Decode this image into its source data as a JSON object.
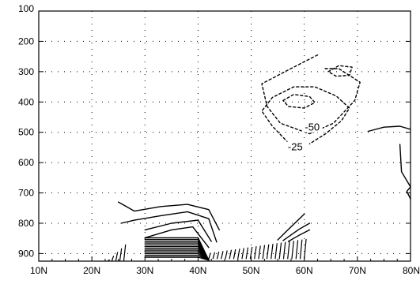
{
  "chart_data": {
    "type": "contour",
    "title": "",
    "xlabel": "",
    "ylabel": "",
    "xlim": [
      10,
      80
    ],
    "ylim": [
      100,
      925
    ],
    "y_inverted": true,
    "grid": true,
    "x_ticks": [
      {
        "value": 10,
        "label": "10N"
      },
      {
        "value": 20,
        "label": "20N"
      },
      {
        "value": 30,
        "label": "30N"
      },
      {
        "value": 40,
        "label": "40N"
      },
      {
        "value": 50,
        "label": "50N"
      },
      {
        "value": 60,
        "label": "60N"
      },
      {
        "value": 70,
        "label": "70N"
      },
      {
        "value": 80,
        "label": "80N"
      }
    ],
    "y_ticks": [
      {
        "value": 100,
        "label": "100"
      },
      {
        "value": 200,
        "label": "200"
      },
      {
        "value": 300,
        "label": "300"
      },
      {
        "value": 400,
        "label": "400"
      },
      {
        "value": 500,
        "label": "500"
      },
      {
        "value": 600,
        "label": "600"
      },
      {
        "value": 700,
        "label": "700"
      },
      {
        "value": 800,
        "label": "800"
      },
      {
        "value": 900,
        "label": "900"
      }
    ],
    "contour_labels": [
      {
        "text": "-50",
        "x": 61.5,
        "y": 492
      },
      {
        "text": "-25",
        "x": 58.3,
        "y": 557
      }
    ],
    "dashed_contours": [
      [
        [
          62.5,
          245
        ],
        [
          58,
          285
        ],
        [
          52,
          340
        ],
        [
          53,
          415
        ],
        [
          55.5,
          470
        ],
        [
          61,
          505
        ],
        [
          65.5,
          470
        ],
        [
          69.5,
          395
        ],
        [
          70.5,
          335
        ],
        [
          66.5,
          290
        ],
        [
          63.5,
          290
        ]
      ],
      [
        [
          57,
          535
        ],
        [
          54,
          480
        ],
        [
          52,
          430
        ],
        [
          54,
          385
        ],
        [
          58,
          350
        ],
        [
          62,
          350
        ],
        [
          66,
          380
        ],
        [
          68.5,
          420
        ],
        [
          67,
          462
        ],
        [
          64,
          505
        ],
        [
          61,
          538
        ]
      ],
      [
        [
          56,
          395
        ],
        [
          58,
          375
        ],
        [
          61,
          382
        ],
        [
          62,
          402
        ],
        [
          60,
          420
        ],
        [
          57,
          415
        ],
        [
          56,
          395
        ]
      ],
      [
        [
          64.5,
          300
        ],
        [
          66.5,
          280
        ],
        [
          69,
          285
        ],
        [
          68.5,
          312
        ],
        [
          66,
          315
        ],
        [
          64.5,
          300
        ]
      ]
    ],
    "solid_contours": [
      [
        [
          25,
          730
        ],
        [
          28,
          760
        ],
        [
          33,
          745
        ],
        [
          38,
          738
        ],
        [
          42,
          755
        ],
        [
          44,
          822
        ]
      ],
      [
        [
          25.5,
          800
        ],
        [
          28,
          790
        ],
        [
          33,
          775
        ],
        [
          38,
          762
        ],
        [
          42,
          785
        ],
        [
          43.5,
          862
        ]
      ],
      [
        [
          30,
          822
        ],
        [
          35,
          800
        ],
        [
          40,
          790
        ],
        [
          42.5,
          860
        ]
      ],
      [
        [
          30,
          848
        ],
        [
          35,
          822
        ],
        [
          39,
          812
        ],
        [
          42,
          880
        ]
      ],
      [
        [
          55,
          855
        ],
        [
          57,
          820
        ],
        [
          60,
          770
        ]
      ],
      [
        [
          56,
          857
        ],
        [
          59,
          820
        ],
        [
          61,
          800
        ]
      ],
      [
        [
          57,
          860
        ],
        [
          59,
          840
        ],
        [
          61,
          822
        ]
      ],
      [
        [
          72,
          497
        ],
        [
          75,
          483
        ],
        [
          78,
          480
        ],
        [
          80,
          490
        ]
      ],
      [
        [
          78,
          540
        ],
        [
          78.3,
          630
        ],
        [
          80,
          680
        ],
        [
          79.3,
          695
        ],
        [
          80,
          720
        ]
      ]
    ],
    "solid_cluster": {
      "x_start": 30,
      "x_end": 40,
      "x_join": 42,
      "y_top": 848,
      "y_bottom": 912,
      "count": 12
    },
    "dense_hatch_east": {
      "x_start": 42,
      "x_end": 60,
      "y_start": 918,
      "y_top_west": 898,
      "y_top_east": 852,
      "count": 24
    },
    "dense_hatch_west": {
      "x_start": 23,
      "x_end": 26,
      "y_start": 925,
      "y_top_west": 920,
      "y_top_east": 870,
      "count": 5
    }
  }
}
